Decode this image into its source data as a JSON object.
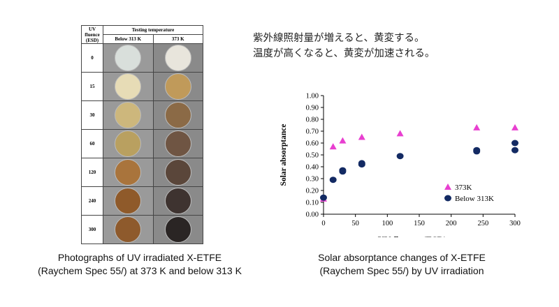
{
  "note": {
    "line1": "紫外線照射量が増えると、黄変する。",
    "line2": "温度が高くなると、黄変が加速される。"
  },
  "photo_table": {
    "header_fluence": "UV fluence (ESD)",
    "header_group": "Testing temperature",
    "col_low": "Below 313 K",
    "col_high": "373 K",
    "rows": [
      {
        "fluence": "0",
        "low_color": "#d9dfdb",
        "high_color": "#e8e5dc"
      },
      {
        "fluence": "15",
        "low_color": "#e7dcb6",
        "high_color": "#c09a5a"
      },
      {
        "fluence": "30",
        "low_color": "#cdb77c",
        "high_color": "#8b6a46"
      },
      {
        "fluence": "60",
        "low_color": "#b9a060",
        "high_color": "#6f5543"
      },
      {
        "fluence": "120",
        "low_color": "#a9743c",
        "high_color": "#5a463a"
      },
      {
        "fluence": "240",
        "low_color": "#8f5a2a",
        "high_color": "#3e3330"
      },
      {
        "fluence": "300",
        "low_color": "#8e5a2c",
        "high_color": "#2a2524"
      }
    ]
  },
  "caption_left": {
    "line1": "Photographs of UV irradiated X-ETFE",
    "line2": "(Raychem Spec 55/) at 373 K and below 313 K"
  },
  "caption_right": {
    "line1": "Solar absorptance changes of X-ETFE",
    "line2": "(Raychem Spec 55/) by UV irradiation"
  },
  "chart_data": {
    "type": "scatter",
    "xlabel": "UV fluence  (ESD)",
    "ylabel": "Solar absorptance",
    "xlim": [
      0,
      300
    ],
    "ylim": [
      0,
      1.0
    ],
    "xticks": [
      "0",
      "50",
      "100",
      "150",
      "200",
      "250",
      "300"
    ],
    "yticks": [
      "0.00",
      "0.10",
      "0.20",
      "0.30",
      "0.40",
      "0.50",
      "0.60",
      "0.70",
      "0.80",
      "0.90",
      "1.00"
    ],
    "legend_position": "bottom-right",
    "series": [
      {
        "name": "373K",
        "marker": "triangle",
        "color": "#e83fd0",
        "points": [
          [
            0,
            0.13
          ],
          [
            15,
            0.57
          ],
          [
            30,
            0.62
          ],
          [
            60,
            0.65
          ],
          [
            120,
            0.68
          ],
          [
            240,
            0.73
          ],
          [
            300,
            0.73
          ]
        ]
      },
      {
        "name": "Below 313K",
        "marker": "circle",
        "color": "#132a63",
        "points": [
          [
            0,
            0.14
          ],
          [
            15,
            0.29
          ],
          [
            30,
            0.36
          ],
          [
            30,
            0.37
          ],
          [
            60,
            0.42
          ],
          [
            60,
            0.43
          ],
          [
            120,
            0.49
          ],
          [
            240,
            0.53
          ],
          [
            240,
            0.54
          ],
          [
            300,
            0.54
          ],
          [
            300,
            0.6
          ]
        ]
      }
    ]
  }
}
